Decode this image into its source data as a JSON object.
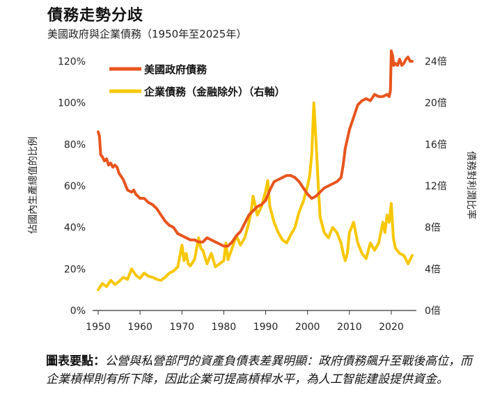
{
  "header": {
    "title": "債務走勢分歧",
    "subtitle": "美國政府與企業債務（1950年至2025年）"
  },
  "note": {
    "lead": "圖表要點：",
    "text": "公營與私營部門的資產負債表差異明顯：政府債務飆升至戰後高位，而企業槓桿則有所下降，因此企業可提高槓桿水平，為人工智能建設提供資金。"
  },
  "colors": {
    "government": "#E8541E",
    "corporate": "#F7C700",
    "axis": "#333333"
  },
  "chart_data": {
    "type": "line",
    "title": "債務走勢分歧",
    "subtitle": "美國政府與企業債務（1950年至2025年）",
    "xlabel": "",
    "ylabel_left": "佔國內生產總值的比例",
    "ylabel_right": "債務對利潤比率",
    "xlim": [
      1950,
      2026
    ],
    "ylim_left": [
      0,
      120
    ],
    "ylim_right": [
      0,
      24
    ],
    "x_ticks": [
      "1950",
      "1960",
      "1970",
      "1980",
      "1990",
      "2000",
      "2010",
      "2020"
    ],
    "x_tick_values": [
      1950,
      1960,
      1970,
      1980,
      1990,
      2000,
      2010,
      2020
    ],
    "y_ticks_left": [
      "0%",
      "20%",
      "40%",
      "60%",
      "80%",
      "100%",
      "120%"
    ],
    "y_tick_values_left": [
      0,
      20,
      40,
      60,
      80,
      100,
      120
    ],
    "y_ticks_right": [
      "0倍",
      "4倍",
      "8倍",
      "12倍",
      "16倍",
      "20倍",
      "24倍"
    ],
    "y_tick_values_right": [
      0,
      4,
      8,
      12,
      16,
      20,
      24
    ],
    "series": [
      {
        "name": "美國政府債務",
        "axis": "left",
        "color": "#E8541E",
        "x": [
          1950.0,
          1950.3,
          1950.6,
          1951.0,
          1951.5,
          1952.0,
          1952.5,
          1953.0,
          1953.5,
          1954.0,
          1954.5,
          1955.0,
          1956.0,
          1957.0,
          1958.0,
          1958.5,
          1959.0,
          1960.0,
          1961.0,
          1962.0,
          1963.0,
          1964.0,
          1965.0,
          1966.0,
          1967.0,
          1968.0,
          1969.0,
          1970.0,
          1971.0,
          1972.0,
          1973.0,
          1974.0,
          1975.0,
          1976.0,
          1977.0,
          1978.0,
          1979.0,
          1980.0,
          1981.0,
          1982.0,
          1983.0,
          1984.0,
          1985.0,
          1986.0,
          1987.0,
          1988.0,
          1989.0,
          1990.0,
          1991.0,
          1992.0,
          1993.0,
          1994.0,
          1995.0,
          1996.0,
          1997.0,
          1998.0,
          1999.0,
          2000.0,
          2001.0,
          2002.0,
          2003.0,
          2004.0,
          2005.0,
          2006.0,
          2007.0,
          2008.0,
          2008.5,
          2009.0,
          2010.0,
          2011.0,
          2012.0,
          2013.0,
          2014.0,
          2015.0,
          2016.0,
          2017.0,
          2018.0,
          2019.0,
          2019.5,
          2019.8,
          2020.0,
          2020.3,
          2020.6,
          2021.0,
          2021.5,
          2022.0,
          2022.5,
          2023.0,
          2023.5,
          2024.0,
          2024.5,
          2025.0
        ],
        "values": [
          86,
          84,
          75,
          74,
          72,
          73,
          70,
          71,
          69,
          70,
          69,
          66,
          63,
          58,
          57,
          58,
          56,
          54,
          54,
          52,
          51,
          49,
          46,
          43,
          41,
          40,
          37,
          36,
          35,
          34,
          34,
          33,
          33,
          35,
          34,
          33,
          32,
          31,
          31,
          33,
          36,
          38,
          42,
          46,
          48,
          50,
          51,
          53,
          58,
          62,
          63,
          64,
          65,
          65,
          64,
          62,
          59,
          56,
          54,
          55,
          57,
          59,
          60,
          61,
          62,
          64,
          70,
          78,
          87,
          93,
          99,
          101,
          102,
          101,
          104,
          103,
          103,
          104,
          103,
          106,
          125,
          123,
          118,
          119,
          118,
          121,
          118,
          119,
          121,
          122,
          120,
          120
        ]
      },
      {
        "name": "企業債務（金融除外）（右軸）",
        "axis": "right",
        "color": "#F7C700",
        "x": [
          1950.0,
          1951.0,
          1952.0,
          1953.0,
          1954.0,
          1955.0,
          1956.0,
          1957.0,
          1958.0,
          1959.0,
          1960.0,
          1961.0,
          1962.0,
          1963.0,
          1964.0,
          1965.0,
          1966.0,
          1967.0,
          1968.0,
          1969.0,
          1970.0,
          1970.5,
          1971.0,
          1971.5,
          1972.0,
          1973.0,
          1974.0,
          1974.5,
          1975.0,
          1976.0,
          1977.0,
          1978.0,
          1979.0,
          1980.0,
          1980.5,
          1981.0,
          1982.0,
          1983.0,
          1984.0,
          1985.0,
          1986.0,
          1986.5,
          1987.0,
          1988.0,
          1989.0,
          1990.0,
          1990.5,
          1991.0,
          1992.0,
          1993.0,
          1994.0,
          1995.0,
          1996.0,
          1997.0,
          1998.0,
          1999.0,
          2000.0,
          2000.5,
          2001.0,
          2001.5,
          2002.0,
          2002.5,
          2003.0,
          2004.0,
          2005.0,
          2006.0,
          2007.0,
          2008.0,
          2008.5,
          2009.0,
          2009.5,
          2010.0,
          2011.0,
          2012.0,
          2013.0,
          2014.0,
          2015.0,
          2016.0,
          2017.0,
          2018.0,
          2018.5,
          2019.0,
          2019.5,
          2020.0,
          2020.5,
          2021.0,
          2022.0,
          2023.0,
          2024.0,
          2025.0
        ],
        "values": [
          2.0,
          2.6,
          2.3,
          2.9,
          2.5,
          2.8,
          3.2,
          3.0,
          4.0,
          3.4,
          3.1,
          3.6,
          3.3,
          3.2,
          3.0,
          2.9,
          3.2,
          3.6,
          3.8,
          4.2,
          6.3,
          4.8,
          5.5,
          4.5,
          4.3,
          4.9,
          7.0,
          6.0,
          5.8,
          4.5,
          5.5,
          4.2,
          4.5,
          4.8,
          6.5,
          4.9,
          6.0,
          7.2,
          6.3,
          7.0,
          8.5,
          9.5,
          11.0,
          9.2,
          10.0,
          11.5,
          12.5,
          10.0,
          8.5,
          7.5,
          6.8,
          6.5,
          7.3,
          8.0,
          9.5,
          10.5,
          12.0,
          13.0,
          15.0,
          20.0,
          16.5,
          12.5,
          9.0,
          7.5,
          7.0,
          8.0,
          7.5,
          6.5,
          5.5,
          4.8,
          5.5,
          7.5,
          8.5,
          6.5,
          5.5,
          5.0,
          6.5,
          5.8,
          6.5,
          8.5,
          7.5,
          9.2,
          8.5,
          10.3,
          7.0,
          6.0,
          5.5,
          5.3,
          4.5,
          5.3
        ]
      }
    ],
    "legend": [
      {
        "label": "美國政府債務",
        "color": "#E8541E"
      },
      {
        "label": "企業債務（金融除外）（右軸）",
        "color": "#F7C700"
      }
    ],
    "legend_position": "top-left"
  }
}
